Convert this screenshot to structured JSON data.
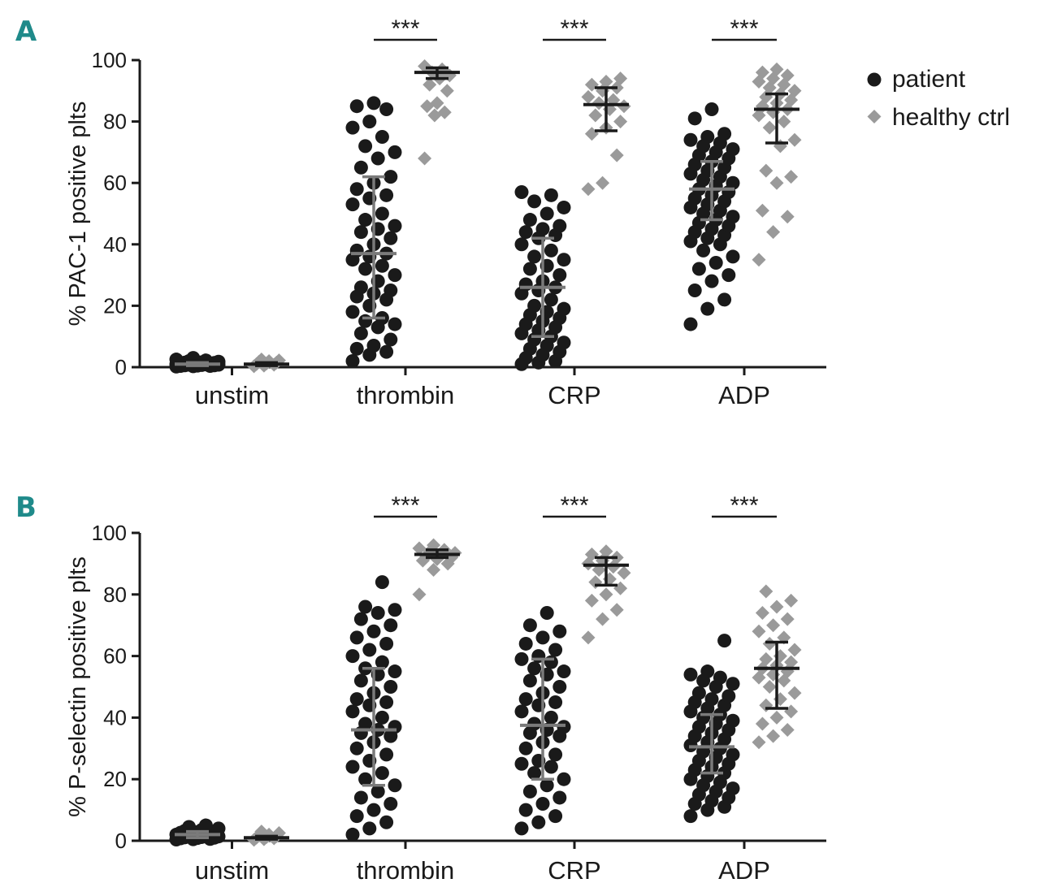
{
  "colors": {
    "patient": "#1a1a1a",
    "healthy": "#9a9a9a",
    "panel_label": "#1f8a8a",
    "axis": "#1a1a1a",
    "patient_bar": "#7a7a7a",
    "healthy_bar": "#1a1a1a"
  },
  "legend": {
    "patient_label": "patient",
    "healthy_label": "healthy ctrl",
    "patient_icon": "filled-circle-icon",
    "healthy_icon": "filled-diamond-icon"
  },
  "chart_data": [
    {
      "type": "scatter",
      "panel_label": "A",
      "title": "",
      "ylabel": "% PAC-1 positive plts",
      "xlabel": "",
      "ylim": [
        0,
        100
      ],
      "yticks": [
        "0",
        "20",
        "40",
        "60",
        "80",
        "100"
      ],
      "categories": [
        "unstim",
        "thrombin",
        "CRP",
        "ADP"
      ],
      "significance": [
        "",
        "***",
        "***",
        "***"
      ],
      "series": [
        {
          "name": "patient",
          "marker": "circle",
          "summary": [
            {
              "mean": 1,
              "lower": 0.5,
              "upper": 1.5
            },
            {
              "mean": 37,
              "lower": 16,
              "upper": 62
            },
            {
              "mean": 26,
              "lower": 10,
              "upper": 42
            },
            {
              "mean": 58,
              "lower": 48,
              "upper": 67
            }
          ],
          "values": [
            [
              0.2,
              0.4,
              0.6,
              0.8,
              1.0,
              1.2,
              1.4,
              1.6,
              1.8,
              2.0,
              2.5,
              3.0,
              0.5,
              0.9,
              1.1,
              0.3,
              0.7,
              1.3,
              1.5,
              0.6,
              0.8,
              2.2,
              1.0,
              0.4
            ],
            [
              85,
              86,
              84,
              80,
              78,
              75,
              72,
              70,
              68,
              65,
              62,
              60,
              58,
              56,
              55,
              53,
              50,
              48,
              46,
              45,
              44,
              42,
              40,
              38,
              37,
              36,
              35,
              33,
              32,
              30,
              28,
              26,
              25,
              24,
              23,
              22,
              20,
              18,
              16,
              15,
              14,
              13,
              11,
              9,
              7,
              6,
              5,
              4,
              2
            ],
            [
              57,
              56,
              54,
              52,
              50,
              48,
              46,
              45,
              44,
              43,
              42,
              40,
              38,
              36,
              35,
              33,
              32,
              30,
              28,
              27,
              26,
              25,
              24,
              22,
              20,
              19,
              18,
              17,
              16,
              15,
              14,
              13,
              12,
              11,
              10,
              9,
              8,
              7,
              6,
              5,
              4,
              3,
              2,
              1.5,
              1
            ],
            [
              84,
              81,
              76,
              75,
              74,
              73,
              72,
              71,
              70,
              69,
              68,
              67,
              66,
              65,
              64,
              63,
              62,
              61,
              60,
              59,
              58,
              57,
              56,
              55,
              54,
              53,
              52,
              51,
              50,
              49,
              48,
              47,
              46,
              45,
              44,
              43,
              42,
              41,
              40,
              38,
              36,
              34,
              32,
              30,
              28,
              25,
              22,
              19,
              14
            ]
          ]
        },
        {
          "name": "healthy ctrl",
          "marker": "diamond",
          "summary": [
            {
              "mean": 1,
              "lower": 0.5,
              "upper": 1.5
            },
            {
              "mean": 96,
              "lower": 94,
              "upper": 97.5
            },
            {
              "mean": 85.5,
              "lower": 77,
              "upper": 91
            },
            {
              "mean": 84,
              "lower": 73,
              "upper": 89
            }
          ],
          "values": [
            [
              0.5,
              1.0,
              1.5,
              2.0,
              2.5,
              0.8,
              1.2,
              0.3,
              1.8,
              2.2
            ],
            [
              98,
              97,
              96,
              95,
              94,
              92,
              90,
              86,
              85,
              83,
              82,
              68
            ],
            [
              94,
              93,
              92,
              91,
              90,
              88,
              87,
              86,
              85,
              84,
              82,
              80,
              78,
              76,
              69,
              60,
              58
            ],
            [
              97,
              96,
              95,
              94,
              93,
              92,
              91,
              90,
              89,
              88,
              87,
              86,
              85,
              84,
              83,
              82,
              80,
              78,
              74,
              72,
              64,
              62,
              60,
              51,
              49,
              44,
              35
            ]
          ]
        }
      ]
    },
    {
      "type": "scatter",
      "panel_label": "B",
      "title": "",
      "ylabel": "% P-selectin positive plts",
      "xlabel": "",
      "ylim": [
        0,
        100
      ],
      "yticks": [
        "0",
        "20",
        "40",
        "60",
        "80",
        "100"
      ],
      "categories": [
        "unstim",
        "thrombin",
        "CRP",
        "ADP"
      ],
      "significance": [
        "",
        "***",
        "***",
        "***"
      ],
      "series": [
        {
          "name": "patient",
          "marker": "circle",
          "summary": [
            {
              "mean": 2,
              "lower": 1,
              "upper": 3
            },
            {
              "mean": 36,
              "lower": 18,
              "upper": 56
            },
            {
              "mean": 37.5,
              "lower": 20,
              "upper": 59
            },
            {
              "mean": 30.5,
              "lower": 22,
              "upper": 41
            }
          ],
          "values": [
            [
              0.5,
              1.0,
              1.5,
              2.0,
              2.5,
              3.0,
              3.5,
              4.0,
              4.5,
              5.0,
              1.2,
              0.8,
              2.2,
              1.8,
              0.6,
              2.8,
              3.2,
              1.4,
              0.4,
              2.6,
              1.1,
              0.9
            ],
            [
              84,
              76,
              75,
              74,
              72,
              70,
              68,
              66,
              64,
              62,
              60,
              58,
              56,
              55,
              54,
              52,
              50,
              48,
              46,
              45,
              44,
              42,
              40,
              38,
              37,
              36,
              35,
              34,
              32,
              30,
              28,
              26,
              24,
              22,
              20,
              18,
              16,
              14,
              12,
              10,
              8,
              6,
              4,
              2
            ],
            [
              74,
              70,
              68,
              66,
              64,
              62,
              60,
              59,
              58,
              56,
              55,
              54,
              52,
              50,
              48,
              46,
              45,
              44,
              42,
              40,
              38,
              37,
              36,
              35,
              34,
              32,
              30,
              28,
              26,
              25,
              24,
              22,
              20,
              18,
              16,
              14,
              12,
              10,
              8,
              6,
              4
            ],
            [
              65,
              55,
              54,
              53,
              52,
              51,
              50,
              48,
              47,
              46,
              45,
              44,
              43,
              42,
              41,
              40,
              39,
              38,
              37,
              36,
              35,
              34,
              33,
              32,
              31,
              30,
              29,
              28,
              27,
              26,
              25,
              24,
              23,
              22,
              21,
              20,
              19,
              18,
              17,
              16,
              15,
              14,
              13,
              12,
              11,
              10,
              8
            ]
          ]
        },
        {
          "name": "healthy ctrl",
          "marker": "diamond",
          "summary": [
            {
              "mean": 1,
              "lower": 0.5,
              "upper": 1.5
            },
            {
              "mean": 93,
              "lower": 92,
              "upper": 94.5
            },
            {
              "mean": 89.5,
              "lower": 83,
              "upper": 92
            },
            {
              "mean": 56,
              "lower": 43,
              "upper": 64.5
            }
          ],
          "values": [
            [
              0.5,
              1.0,
              1.5,
              2.0,
              2.5,
              3.0,
              0.8,
              1.2,
              0.3,
              1.8
            ],
            [
              96,
              95,
              94.5,
              94,
              93.5,
              93,
              92.5,
              92,
              91.5,
              91,
              90,
              88,
              80
            ],
            [
              94,
              93,
              92,
              91,
              90,
              89,
              88,
              87,
              85,
              84,
              82,
              80,
              78,
              75,
              72,
              66
            ],
            [
              81,
              78,
              76,
              74,
              72,
              70,
              68,
              66,
              64,
              62,
              60,
              59,
              58,
              57,
              56,
              55,
              54,
              53,
              52,
              50,
              48,
              46,
              44,
              42,
              40,
              38,
              36,
              34,
              32
            ]
          ]
        }
      ]
    }
  ]
}
